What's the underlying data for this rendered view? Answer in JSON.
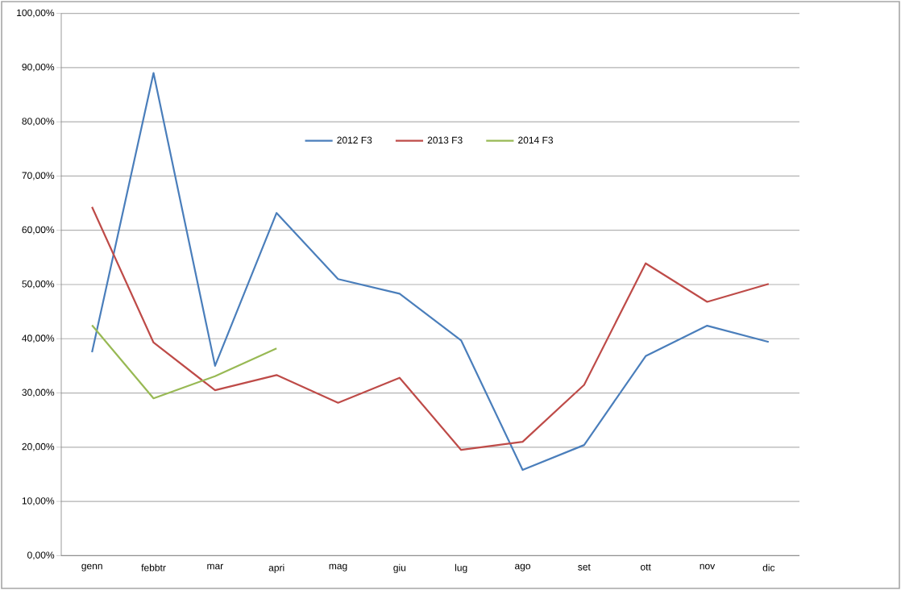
{
  "chart_data": {
    "type": "line",
    "categories": [
      "genn",
      "febbtr",
      "mar",
      "apri",
      "mag",
      "giu",
      "lug",
      "ago",
      "set",
      "ott",
      "nov",
      "dic"
    ],
    "series": [
      {
        "name": "2012 F3",
        "color": "#4a7ebb",
        "values": [
          37.5,
          89,
          35,
          63.2,
          51,
          48.3,
          39.7,
          15.8,
          20.4,
          36.8,
          42.4,
          39.4
        ]
      },
      {
        "name": "2013 F3",
        "color": "#be4b48",
        "values": [
          64.3,
          39.3,
          30.5,
          33.3,
          28.2,
          32.8,
          19.5,
          21.0,
          31.5,
          53.9,
          46.8,
          50.1
        ]
      },
      {
        "name": "2014 F3",
        "color": "#98b954",
        "values": [
          42.5,
          29,
          33.1,
          38.2,
          null,
          null,
          null,
          null,
          null,
          null,
          null,
          null
        ]
      }
    ],
    "ylim": [
      0,
      100
    ],
    "yticks": [
      {
        "value": 0,
        "label": "0,00%"
      },
      {
        "value": 10,
        "label": "10,00%"
      },
      {
        "value": 20,
        "label": "20,00%"
      },
      {
        "value": 30,
        "label": "30,00%"
      },
      {
        "value": 40,
        "label": "40,00%"
      },
      {
        "value": 50,
        "label": "50,00%"
      },
      {
        "value": 60,
        "label": "60,00%"
      },
      {
        "value": 70,
        "label": "70,00%"
      },
      {
        "value": 80,
        "label": "80,00%"
      },
      {
        "value": 90,
        "label": "90,00%"
      },
      {
        "value": 100,
        "label": "100,00%"
      }
    ],
    "grid": "y",
    "legend": "top",
    "marker": "none",
    "line_style": "solid"
  }
}
